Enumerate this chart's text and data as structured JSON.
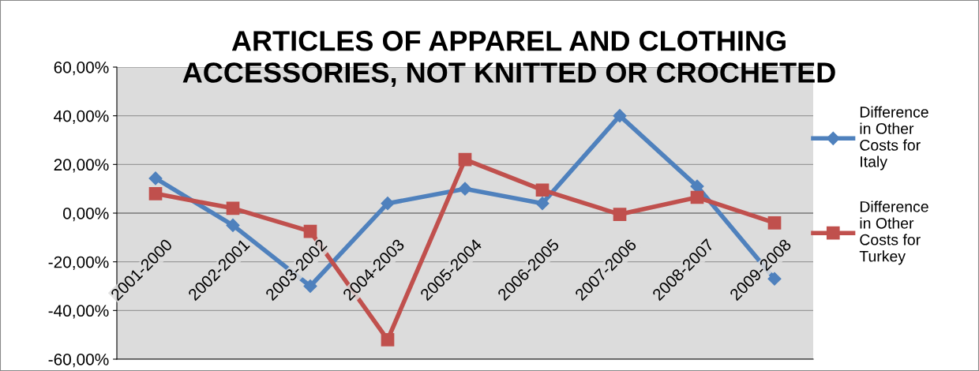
{
  "chart_data": {
    "type": "line",
    "title": "ARTICLES OF APPAREL AND CLOTHING\nACCESSORIES, NOT KNITTED OR CROCHETED",
    "categories": [
      "2001-2000",
      "2002-2001",
      "2003-2002",
      "2004-2003",
      "2005-2004",
      "2006-2005",
      "2007-2006",
      "2008-2007",
      "2009-2008"
    ],
    "series": [
      {
        "name": "Difference in Other Costs for Italy",
        "color": "#4f81bd",
        "marker": "diamond",
        "values": [
          14.3,
          -5,
          -30,
          4,
          10,
          4,
          40,
          11,
          -27
        ]
      },
      {
        "name": "Difference in Other Costs for Turkey",
        "color": "#c0504d",
        "marker": "square",
        "values": [
          8,
          2,
          -7.5,
          -52,
          22,
          9.5,
          -0.5,
          6.5,
          -4
        ]
      }
    ],
    "ylim": [
      -60,
      60
    ],
    "yticks": [
      {
        "value": -60,
        "label": "-60,00%"
      },
      {
        "value": -40,
        "label": "-40,00%"
      },
      {
        "value": -20,
        "label": "-20,00%"
      },
      {
        "value": 0,
        "label": "0,00%"
      },
      {
        "value": 20,
        "label": "20,00%"
      },
      {
        "value": 40,
        "label": "40,00%"
      },
      {
        "value": 60,
        "label": "60,00%"
      }
    ],
    "grid": "y",
    "legend": "right",
    "line_style": "solid"
  }
}
